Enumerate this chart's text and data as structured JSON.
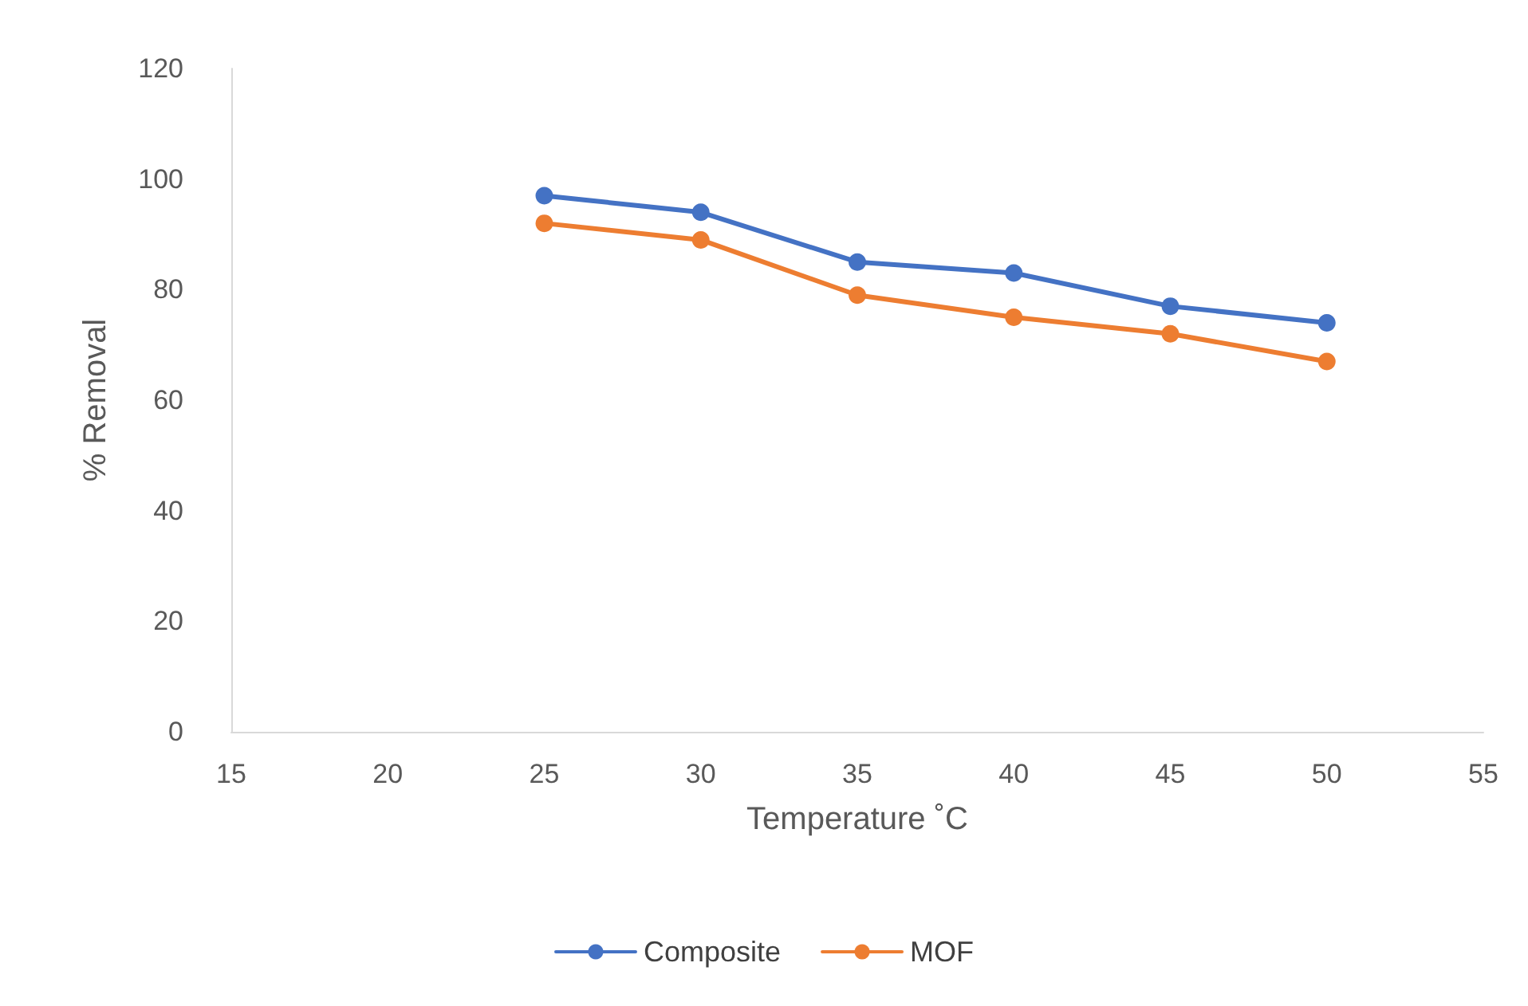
{
  "chart_data": {
    "type": "line",
    "xlabel": "Temperature ˚C",
    "ylabel": "% Removal",
    "x": [
      25,
      30,
      35,
      40,
      45,
      50
    ],
    "series": [
      {
        "name": "Composite",
        "color": "#4472c4",
        "values": [
          97,
          94,
          85,
          83,
          77,
          74
        ]
      },
      {
        "name": "MOF",
        "color": "#ed7d31",
        "values": [
          92,
          89,
          79,
          75,
          72,
          67
        ]
      }
    ],
    "xlim": [
      15,
      55
    ],
    "xticks": [
      15,
      20,
      25,
      30,
      35,
      40,
      45,
      50,
      55
    ],
    "ylim": [
      0,
      120
    ],
    "yticks": [
      0,
      20,
      40,
      60,
      80,
      100,
      120
    ],
    "grid": false,
    "legend": "bottom",
    "marker": "circle",
    "line_style": "solid"
  }
}
